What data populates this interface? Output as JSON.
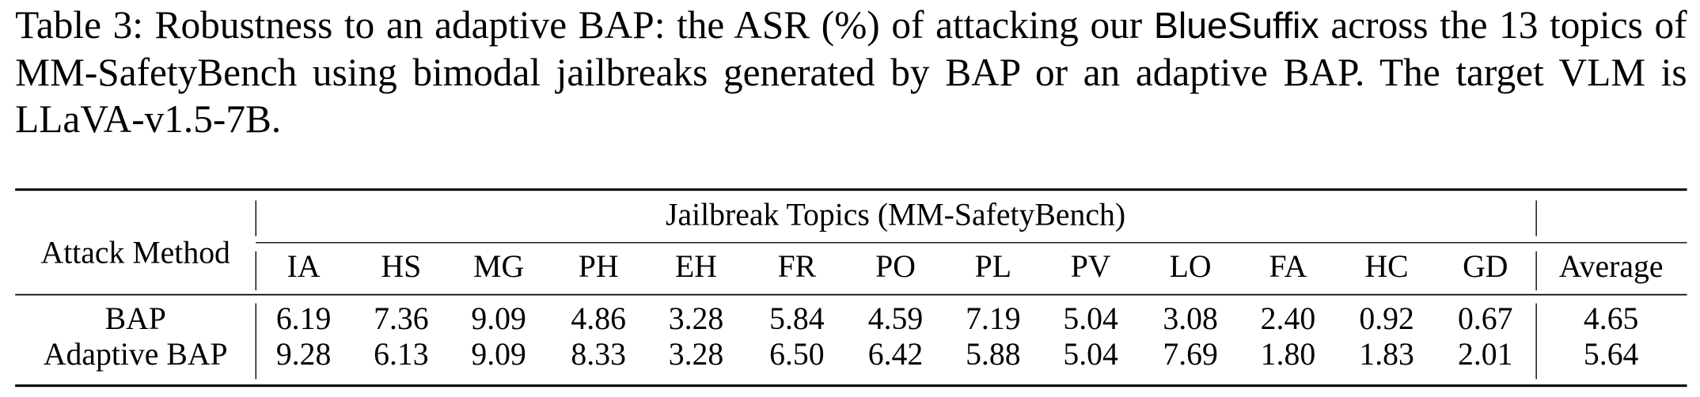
{
  "caption": {
    "before": "Table 3: Robustness to an adaptive BAP: the ASR (%) of attacking our",
    "system": "BlueSuffix",
    "after": "across the 13 topics of MM-SafetyBench using bimodal jailbreaks generated by BAP or an adaptive BAP. The target VLM is LLaVA-v1.5-7B."
  },
  "table": {
    "header": {
      "method": "Attack Method",
      "group": "Jailbreak Topics (MM-SafetyBench)",
      "columns": [
        "IA",
        "HS",
        "MG",
        "PH",
        "EH",
        "FR",
        "PO",
        "PL",
        "PV",
        "LO",
        "FA",
        "HC",
        "GD"
      ],
      "average": "Average"
    },
    "rows": [
      {
        "method": "BAP",
        "values": [
          "6.19",
          "7.36",
          "9.09",
          "4.86",
          "3.28",
          "5.84",
          "4.59",
          "7.19",
          "5.04",
          "3.08",
          "2.40",
          "0.92",
          "0.67"
        ],
        "average": "4.65"
      },
      {
        "method": "Adaptive BAP",
        "values": [
          "9.28",
          "6.13",
          "9.09",
          "8.33",
          "3.28",
          "6.50",
          "6.42",
          "5.88",
          "5.04",
          "7.69",
          "1.80",
          "1.83",
          "2.01"
        ],
        "average": "5.64"
      }
    ]
  }
}
